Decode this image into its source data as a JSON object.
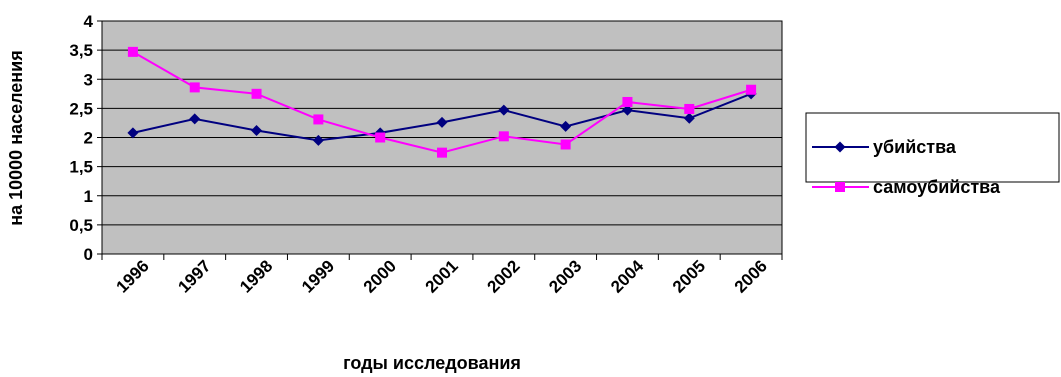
{
  "chart_data": {
    "type": "line",
    "x": [
      "1996",
      "1997",
      "1998",
      "1999",
      "2000",
      "2001",
      "2002",
      "2003",
      "2004",
      "2005",
      "2006"
    ],
    "series": [
      {
        "name": "убийства",
        "values": [
          2.08,
          2.32,
          2.12,
          1.95,
          2.08,
          2.26,
          2.47,
          2.19,
          2.47,
          2.33,
          2.75
        ],
        "color": "#000080",
        "marker": "diamond"
      },
      {
        "name": "самоубийства",
        "values": [
          3.47,
          2.86,
          2.75,
          2.31,
          2.0,
          1.74,
          2.02,
          1.88,
          2.61,
          2.49,
          2.82
        ],
        "color": "#ff00ff",
        "marker": "square"
      }
    ],
    "yticks": [
      "0",
      "0,5",
      "1",
      "1,5",
      "2",
      "2,5",
      "3",
      "3,5",
      "4"
    ],
    "ylim": [
      0,
      4
    ],
    "ylabel": "на 10000 населения",
    "xlabel": "годы исследования",
    "plot_background": "#c0c0c0",
    "grid": true,
    "legend_position": "right"
  }
}
